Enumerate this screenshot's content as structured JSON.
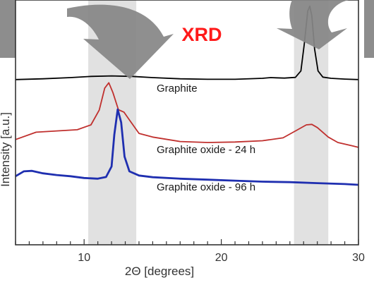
{
  "chart_data": {
    "type": "line",
    "title": "XRD",
    "xlabel": "2Θ [degrees]",
    "ylabel": "Intensity [a.u.]",
    "xlim": [
      5,
      30
    ],
    "ylim": [
      0,
      1
    ],
    "x_ticks": [
      10,
      20,
      30
    ],
    "x_minor_step": 1,
    "grid": false,
    "highlight_bands": [
      {
        "x0": 10.3,
        "x1": 13.8
      },
      {
        "x0": 25.3,
        "x1": 27.8
      }
    ],
    "series": [
      {
        "name": "Graphite",
        "color": "#000000",
        "points": [
          [
            5,
            0.675
          ],
          [
            7,
            0.678
          ],
          [
            9,
            0.683
          ],
          [
            10.5,
            0.688
          ],
          [
            12,
            0.69
          ],
          [
            13.5,
            0.688
          ],
          [
            15,
            0.683
          ],
          [
            17,
            0.678
          ],
          [
            19,
            0.676
          ],
          [
            21,
            0.676
          ],
          [
            23,
            0.68
          ],
          [
            23.6,
            0.683
          ],
          [
            24,
            0.682
          ],
          [
            24.6,
            0.681
          ],
          [
            25.4,
            0.684
          ],
          [
            25.8,
            0.71
          ],
          [
            26.05,
            0.82
          ],
          [
            26.3,
            0.955
          ],
          [
            26.45,
            0.975
          ],
          [
            26.6,
            0.935
          ],
          [
            26.8,
            0.8
          ],
          [
            27.05,
            0.71
          ],
          [
            27.4,
            0.685
          ],
          [
            28,
            0.68
          ],
          [
            29,
            0.677
          ],
          [
            30,
            0.675
          ]
        ]
      },
      {
        "name": "Graphite oxide - 24 h",
        "color": "#c0302e",
        "points": [
          [
            5,
            0.43
          ],
          [
            6.5,
            0.46
          ],
          [
            8,
            0.465
          ],
          [
            9.5,
            0.47
          ],
          [
            10.5,
            0.49
          ],
          [
            11.1,
            0.55
          ],
          [
            11.5,
            0.64
          ],
          [
            11.8,
            0.662
          ],
          [
            12.1,
            0.622
          ],
          [
            12.5,
            0.552
          ],
          [
            12.9,
            0.542
          ],
          [
            13.3,
            0.51
          ],
          [
            14,
            0.455
          ],
          [
            15,
            0.44
          ],
          [
            17,
            0.422
          ],
          [
            19,
            0.418
          ],
          [
            21,
            0.42
          ],
          [
            23,
            0.425
          ],
          [
            24.5,
            0.437
          ],
          [
            25.5,
            0.468
          ],
          [
            26.2,
            0.49
          ],
          [
            26.6,
            0.492
          ],
          [
            27,
            0.479
          ],
          [
            27.8,
            0.44
          ],
          [
            28.5,
            0.418
          ],
          [
            29.5,
            0.405
          ],
          [
            30,
            0.398
          ]
        ]
      },
      {
        "name": "Graphite oxide - 96 h",
        "color": "#1f2fb0",
        "points": [
          [
            5,
            0.28
          ],
          [
            5.6,
            0.3
          ],
          [
            6.2,
            0.302
          ],
          [
            7,
            0.292
          ],
          [
            8,
            0.285
          ],
          [
            9,
            0.28
          ],
          [
            10,
            0.273
          ],
          [
            11,
            0.27
          ],
          [
            11.6,
            0.277
          ],
          [
            12.0,
            0.32
          ],
          [
            12.2,
            0.45
          ],
          [
            12.45,
            0.553
          ],
          [
            12.7,
            0.5
          ],
          [
            12.95,
            0.36
          ],
          [
            13.3,
            0.3
          ],
          [
            14,
            0.283
          ],
          [
            15,
            0.276
          ],
          [
            17,
            0.27
          ],
          [
            19,
            0.266
          ],
          [
            21,
            0.262
          ],
          [
            23,
            0.258
          ],
          [
            25,
            0.256
          ],
          [
            27,
            0.252
          ],
          [
            29,
            0.248
          ],
          [
            30,
            0.245
          ]
        ]
      }
    ]
  }
}
